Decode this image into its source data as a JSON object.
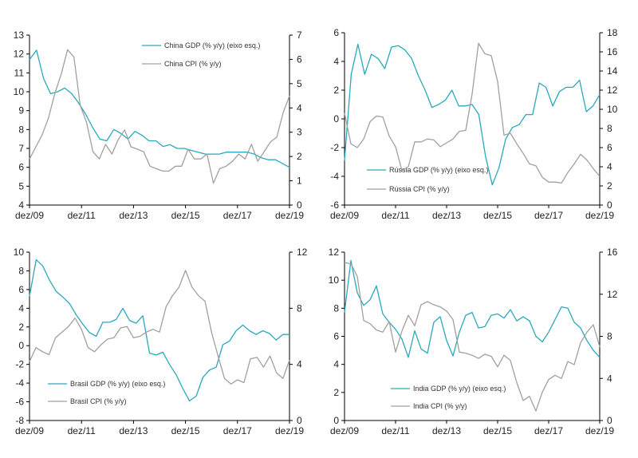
{
  "colors": {
    "gdp": "#2aa9bb",
    "cpi": "#a0a0a0",
    "axis": "#000000"
  },
  "x_tick_labels": [
    "dez/09",
    "dez/11",
    "dez/13",
    "dez/15",
    "dez/17",
    "dez/19"
  ],
  "chart_data": [
    {
      "type": "line",
      "panel": "china",
      "legend_position": "top-center",
      "x_start": 2009.75,
      "x_end": 2019.75,
      "left_axis": {
        "min": 4,
        "max": 13,
        "ticks": [
          "4",
          "5",
          "6",
          "7",
          "8",
          "9",
          "10",
          "11",
          "12",
          "13"
        ]
      },
      "right_axis": {
        "min": 0,
        "max": 7,
        "ticks": [
          "0",
          "1",
          "2",
          "3",
          "4",
          "5",
          "6",
          "7"
        ]
      },
      "series": [
        {
          "name": "China GDP (% y/y) (eixo esq.)",
          "axis": "left",
          "color": "#2aa9bb",
          "values": [
            11.7,
            12.2,
            10.7,
            9.9,
            10.0,
            10.2,
            9.9,
            9.4,
            8.8,
            8.1,
            7.5,
            7.4,
            8.0,
            7.8,
            7.5,
            7.9,
            7.7,
            7.4,
            7.4,
            7.1,
            7.2,
            7.0,
            7.0,
            6.9,
            6.8,
            6.7,
            6.7,
            6.7,
            6.8,
            6.8,
            6.8,
            6.8,
            6.7,
            6.5,
            6.4,
            6.4,
            6.2,
            6.0
          ]
        },
        {
          "name": "China CPI (% y/y)",
          "axis": "right",
          "color": "#a0a0a0",
          "values": [
            1.9,
            2.4,
            2.9,
            3.6,
            4.6,
            5.4,
            6.4,
            6.1,
            4.1,
            3.4,
            2.2,
            1.9,
            2.5,
            2.1,
            2.7,
            3.1,
            2.4,
            2.3,
            2.2,
            1.6,
            1.5,
            1.4,
            1.4,
            1.6,
            1.6,
            2.3,
            1.9,
            1.9,
            2.1,
            0.9,
            1.5,
            1.6,
            1.8,
            2.1,
            1.9,
            2.5,
            1.8,
            2.2,
            2.6,
            2.8,
            3.8,
            4.5
          ]
        }
      ]
    },
    {
      "type": "line",
      "panel": "russia",
      "legend_position": "bottom-center",
      "x_start": 2009.75,
      "x_end": 2019.75,
      "left_axis": {
        "min": -6,
        "max": 6,
        "ticks": [
          "-6",
          "-4",
          "-2",
          "0",
          "2",
          "4",
          "6"
        ]
      },
      "right_axis": {
        "min": 0,
        "max": 18,
        "ticks": [
          "0",
          "2",
          "4",
          "6",
          "8",
          "10",
          "12",
          "14",
          "16",
          "18"
        ]
      },
      "series": [
        {
          "name": "Rússia GDP (% y/y) (eixo esq.)",
          "axis": "left",
          "color": "#2aa9bb",
          "values": [
            -2.9,
            3.1,
            5.2,
            3.1,
            4.5,
            4.2,
            3.5,
            5.0,
            5.1,
            4.8,
            4.2,
            3.0,
            2.0,
            0.8,
            1.0,
            1.3,
            2.0,
            0.9,
            0.9,
            1.0,
            0.3,
            -2.6,
            -4.6,
            -3.4,
            -1.4,
            -0.6,
            -0.4,
            0.3,
            0.3,
            2.5,
            2.2,
            0.9,
            1.9,
            2.2,
            2.2,
            2.7,
            0.5,
            0.9,
            1.7
          ]
        },
        {
          "name": "Rússia CPI (% y/y)",
          "axis": "right",
          "color": "#a0a0a0",
          "values": [
            9.6,
            6.4,
            6.0,
            6.9,
            8.7,
            9.3,
            9.2,
            7.2,
            6.1,
            3.6,
            4.0,
            6.6,
            6.6,
            6.9,
            6.8,
            6.1,
            6.5,
            6.9,
            7.7,
            7.8,
            11.6,
            16.9,
            15.8,
            15.6,
            12.9,
            7.3,
            7.5,
            6.4,
            5.4,
            4.3,
            4.1,
            2.9,
            2.4,
            2.4,
            2.3,
            3.4,
            4.3,
            5.3,
            4.7,
            3.8,
            3.0
          ]
        }
      ]
    },
    {
      "type": "line",
      "panel": "brasil",
      "legend_position": "bottom-left",
      "x_start": 2009.75,
      "x_end": 2019.75,
      "left_axis": {
        "min": -8,
        "max": 10,
        "ticks": [
          "-8",
          "-6",
          "-4",
          "-2",
          "0",
          "2",
          "4",
          "6",
          "8",
          "10"
        ]
      },
      "right_axis": {
        "min": 0,
        "max": 12,
        "ticks": [
          "0",
          "4",
          "8",
          "12"
        ]
      },
      "series": [
        {
          "name": "Brasil GDP (% y/y) (eixo esq.)",
          "axis": "left",
          "color": "#2aa9bb",
          "values": [
            5.3,
            9.2,
            8.5,
            7.0,
            5.8,
            5.2,
            4.5,
            3.3,
            2.3,
            1.4,
            1.0,
            2.5,
            2.5,
            2.8,
            4.0,
            2.7,
            2.4,
            3.2,
            -0.8,
            -1.0,
            -0.7,
            -2.0,
            -3.1,
            -4.6,
            -5.9,
            -5.4,
            -3.4,
            -2.6,
            -2.3,
            0.1,
            0.5,
            1.6,
            2.2,
            1.6,
            1.2,
            1.6,
            1.3,
            0.6,
            1.2,
            1.2
          ]
        },
        {
          "name": "Brasil CPI (% y/y)",
          "axis": "right",
          "color": "#a0a0a0",
          "values": [
            4.2,
            5.2,
            4.9,
            4.7,
            5.9,
            6.3,
            6.7,
            7.3,
            6.5,
            5.2,
            4.9,
            5.4,
            5.8,
            5.9,
            6.6,
            6.7,
            5.9,
            6.0,
            6.3,
            6.5,
            6.3,
            8.1,
            8.9,
            9.5,
            10.7,
            9.5,
            8.9,
            8.5,
            6.3,
            4.6,
            3.0,
            2.6,
            2.9,
            2.7,
            4.4,
            4.5,
            3.8,
            4.6,
            3.4,
            3.0,
            4.3
          ]
        }
      ]
    },
    {
      "type": "line",
      "panel": "india",
      "legend_position": "bottom-center",
      "x_start": 2009.75,
      "x_end": 2019.75,
      "left_axis": {
        "min": 0,
        "max": 12,
        "ticks": [
          "0",
          "2",
          "4",
          "6",
          "8",
          "10",
          "12"
        ]
      },
      "right_axis": {
        "min": 0,
        "max": 16,
        "ticks": [
          "0",
          "4",
          "8",
          "12",
          "16"
        ]
      },
      "series": [
        {
          "name": "India GDP (% y/y) (eixo esq.)",
          "axis": "left",
          "color": "#2aa9bb",
          "values": [
            7.7,
            11.4,
            9.1,
            8.2,
            8.6,
            9.6,
            7.6,
            7.0,
            6.5,
            5.8,
            4.5,
            6.4,
            5.1,
            4.8,
            7.0,
            7.4,
            5.7,
            4.6,
            6.3,
            7.5,
            7.7,
            6.6,
            6.7,
            7.5,
            7.6,
            7.3,
            7.9,
            7.1,
            7.4,
            7.1,
            6.0,
            5.6,
            6.3,
            7.2,
            8.1,
            8.0,
            7.0,
            6.6,
            5.7,
            5.0,
            4.5
          ]
        },
        {
          "name": "India CPI (% y/y)",
          "axis": "right",
          "color": "#a0a0a0",
          "values": [
            15.0,
            14.9,
            13.7,
            9.5,
            9.2,
            8.6,
            8.4,
            9.4,
            6.5,
            8.5,
            10.0,
            9.0,
            11.0,
            11.3,
            11.0,
            10.8,
            10.4,
            9.6,
            6.5,
            6.4,
            6.2,
            5.9,
            6.3,
            6.1,
            5.1,
            6.2,
            5.7,
            3.6,
            1.9,
            2.3,
            0.9,
            2.7,
            3.9,
            4.3,
            4.0,
            5.6,
            5.3,
            7.4,
            8.4,
            9.1,
            7.0
          ]
        }
      ]
    }
  ]
}
